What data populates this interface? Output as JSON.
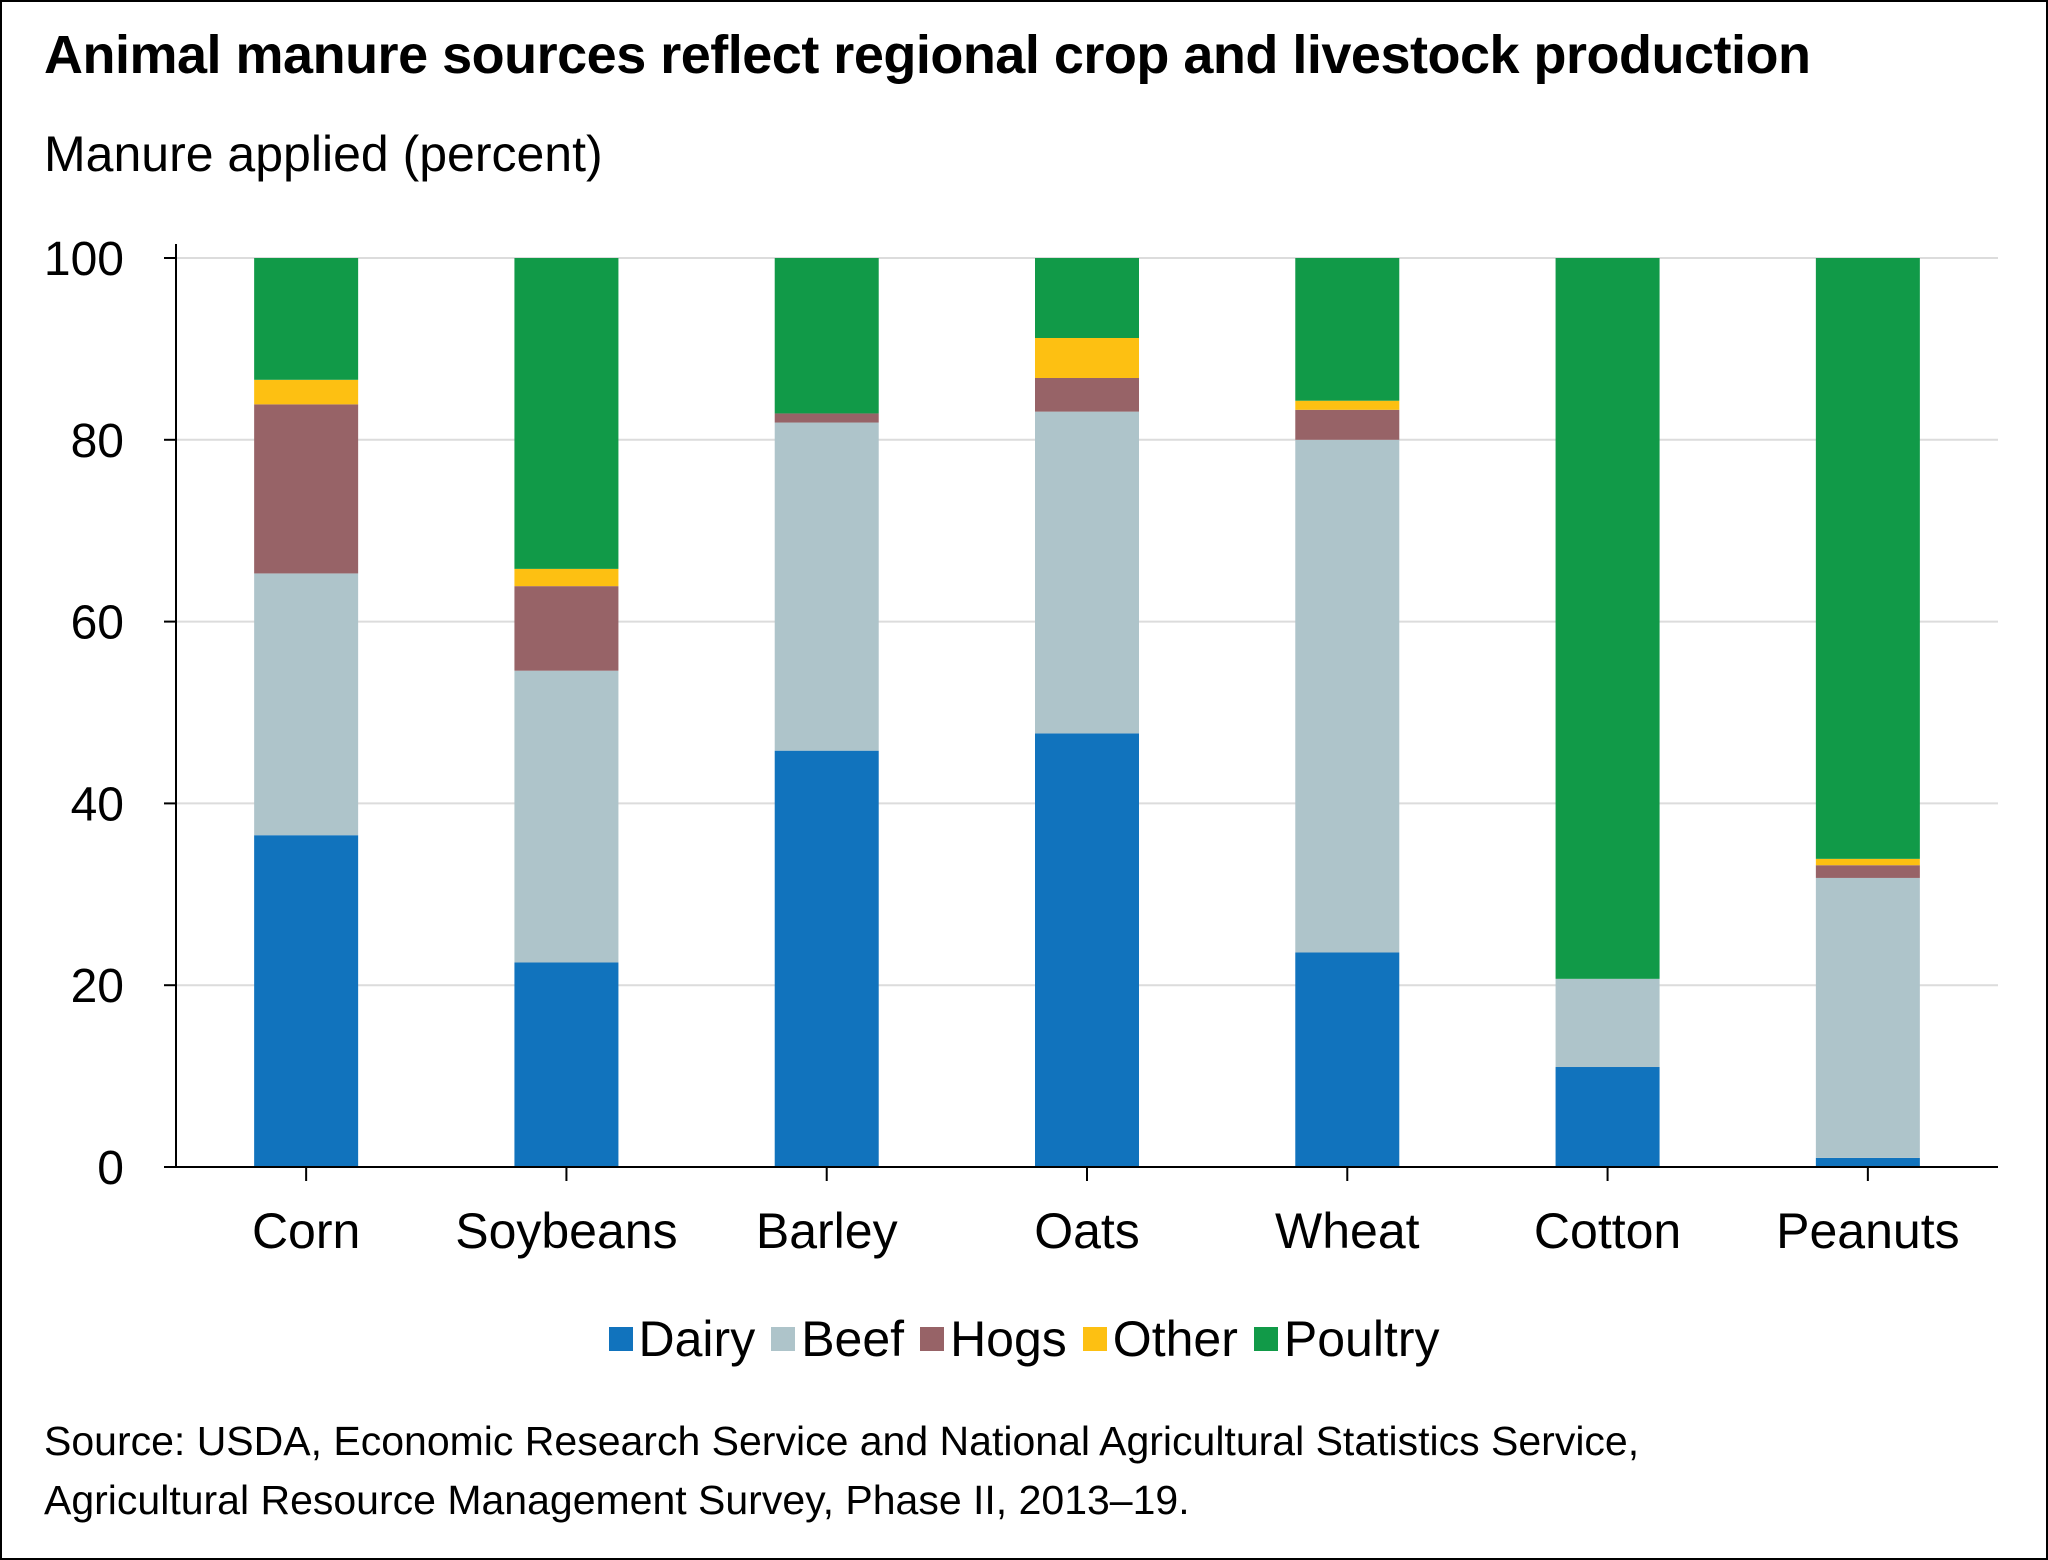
{
  "title": "Animal manure sources reflect regional crop and livestock production",
  "ylabel": "Manure applied (percent)",
  "source_lines": [
    "Source: USDA, Economic Research Service and National Agricultural Statistics Service,",
    "Agricultural Resource Management Survey, Phase II, 2013–19."
  ],
  "colors": {
    "Dairy": "#1173bd",
    "Beef": "#aec4ca",
    "Hogs": "#976367",
    "Other": "#fdc012",
    "Poultry": "#119a48",
    "grid": "#dcdcdc",
    "axis": "#000000"
  },
  "chart_data": {
    "type": "bar",
    "stacked": true,
    "categories": [
      "Corn",
      "Soybeans",
      "Barley",
      "Oats",
      "Wheat",
      "Cotton",
      "Peanuts"
    ],
    "series": [
      {
        "name": "Dairy",
        "values": [
          36.5,
          22.5,
          45.8,
          47.7,
          23.6,
          11.0,
          1.0
        ]
      },
      {
        "name": "Beef",
        "values": [
          28.8,
          32.1,
          36.1,
          35.4,
          56.4,
          9.7,
          30.8
        ]
      },
      {
        "name": "Hogs",
        "values": [
          18.6,
          9.3,
          1.0,
          3.7,
          3.3,
          0.0,
          1.4
        ]
      },
      {
        "name": "Other",
        "values": [
          2.7,
          1.9,
          0.0,
          4.4,
          1.0,
          0.0,
          0.7
        ]
      },
      {
        "name": "Poultry",
        "values": [
          13.4,
          34.2,
          17.1,
          8.8,
          15.7,
          79.3,
          66.1
        ]
      }
    ],
    "ylim": [
      0,
      100
    ],
    "yticks": [
      0,
      20,
      40,
      60,
      80,
      100
    ],
    "grid": true,
    "legend_position": "bottom"
  }
}
